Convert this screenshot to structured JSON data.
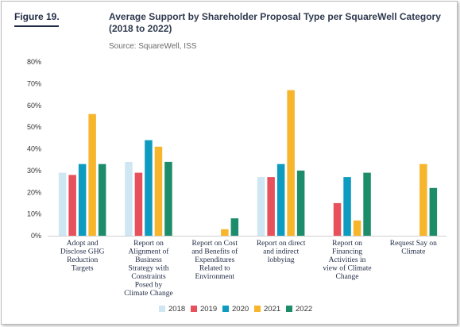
{
  "figure_label": "Figure 19.",
  "title": "Average Support by Shareholder Proposal Type per SquareWell Category (2018 to 2022)",
  "source": "Source: SquareWell, ISS",
  "chart_data": {
    "type": "bar",
    "categories": [
      [
        "Adopt and",
        "Disclose GHG",
        "Reduction",
        "Targets"
      ],
      [
        "Report on",
        "Alignment of",
        "Business",
        "Strategy with",
        "Constraints",
        "Posed by",
        "Climate Change"
      ],
      [
        "Report on Cost",
        "and Benefits of",
        "Expenditures",
        "Related to",
        "Environment"
      ],
      [
        "Report on direct",
        "and indirect",
        "lobbying"
      ],
      [
        "Report on",
        "Financing",
        "Activities in",
        "view of Climate",
        "Change"
      ],
      [
        "Request Say on",
        "Climate"
      ]
    ],
    "series": [
      {
        "name": "2018",
        "color": "#cfe6f3",
        "values": [
          29,
          34,
          null,
          27,
          null,
          null
        ]
      },
      {
        "name": "2019",
        "color": "#e8505b",
        "values": [
          28,
          29,
          null,
          27,
          15,
          null
        ]
      },
      {
        "name": "2020",
        "color": "#0e9bc0",
        "values": [
          33,
          44,
          null,
          33,
          27,
          null
        ]
      },
      {
        "name": "2021",
        "color": "#f7b52c",
        "values": [
          56,
          41,
          3,
          67,
          7,
          33
        ]
      },
      {
        "name": "2022",
        "color": "#1d8c6b",
        "values": [
          33,
          34,
          8,
          30,
          29,
          22
        ]
      }
    ],
    "yticks": [
      "0%",
      "10%",
      "20%",
      "30%",
      "40%",
      "50%",
      "60%",
      "70%",
      "80%"
    ],
    "ylim": [
      0,
      80
    ],
    "xlabel": "",
    "ylabel": "",
    "grid": false,
    "legend_position": "bottom"
  }
}
